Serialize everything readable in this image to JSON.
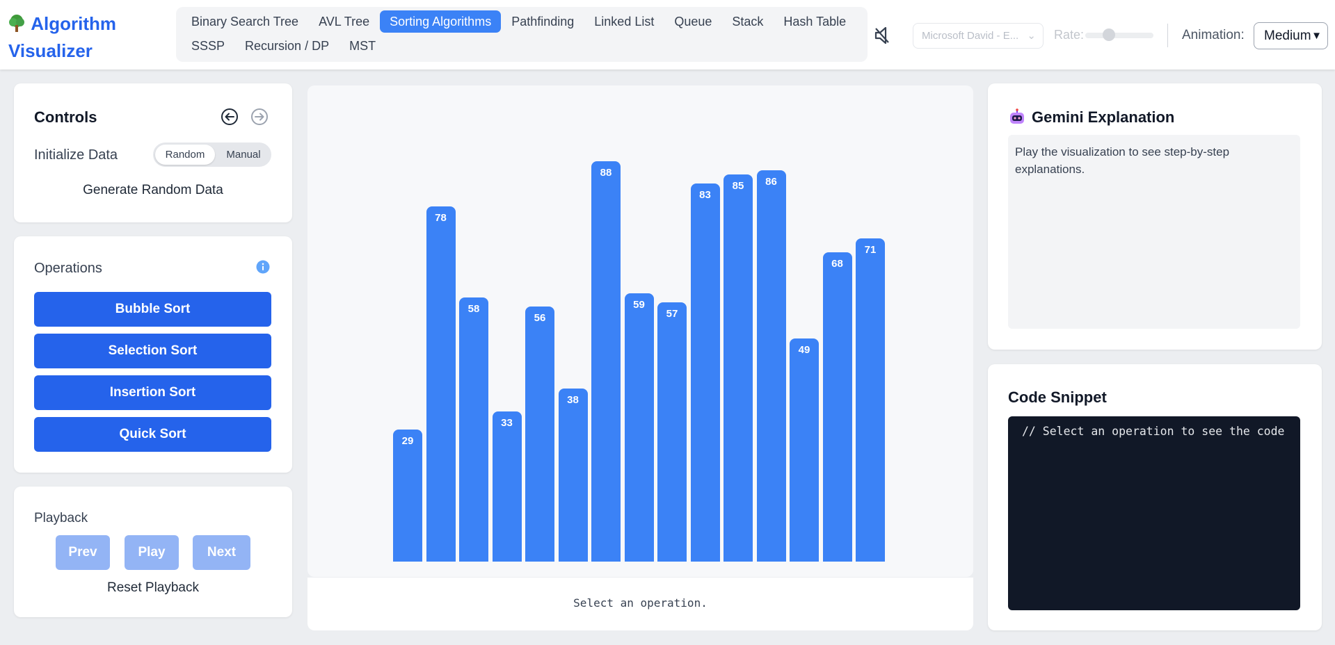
{
  "app": {
    "title": "Algorithm Visualizer"
  },
  "nav": {
    "tabs": [
      {
        "label": "Binary Search Tree",
        "active": false
      },
      {
        "label": "AVL Tree",
        "active": false
      },
      {
        "label": "Sorting Algorithms",
        "active": true
      },
      {
        "label": "Pathfinding",
        "active": false
      },
      {
        "label": "Linked List",
        "active": false
      },
      {
        "label": "Queue",
        "active": false
      },
      {
        "label": "Stack",
        "active": false
      },
      {
        "label": "Hash Table",
        "active": false
      },
      {
        "label": "SSSP",
        "active": false
      },
      {
        "label": "Recursion / DP",
        "active": false
      },
      {
        "label": "MST",
        "active": false
      }
    ]
  },
  "speech": {
    "voice": "Microsoft David - E...",
    "rate_label": "Rate:",
    "rate_value": 0.35
  },
  "animation": {
    "label": "Animation:",
    "value": "Medium"
  },
  "controls": {
    "title": "Controls",
    "init_label": "Initialize Data",
    "mode_random": "Random",
    "mode_manual": "Manual",
    "generate": "Generate Random Data"
  },
  "operations": {
    "title": "Operations",
    "buttons": [
      "Bubble Sort",
      "Selection Sort",
      "Insertion Sort",
      "Quick Sort"
    ]
  },
  "playback": {
    "title": "Playback",
    "prev": "Prev",
    "play": "Play",
    "next": "Next",
    "reset": "Reset Playback"
  },
  "visualization": {
    "status": "Select an operation.",
    "values": [
      29,
      78,
      58,
      33,
      56,
      38,
      88,
      59,
      57,
      83,
      85,
      86,
      49,
      68,
      71
    ],
    "bar_color": "#3b82f6"
  },
  "gemini": {
    "title": "Gemini Explanation",
    "body": "Play the visualization to see step-by-step explanations."
  },
  "code": {
    "title": "Code Snippet",
    "body": "// Select an operation to see the code"
  },
  "colors": {
    "accent": "#2563eb",
    "tab_active": "#3b82f6",
    "code_bg": "#111827",
    "disabled": "#93b4f5"
  }
}
